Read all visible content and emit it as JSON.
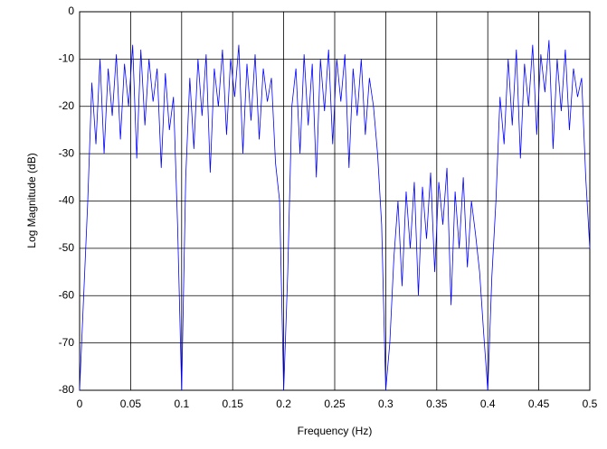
{
  "chart_data": {
    "type": "line",
    "xlabel": "Frequency (Hz)",
    "ylabel": "Log Magnitude (dB)",
    "xlim": [
      0,
      0.5
    ],
    "ylim": [
      -80,
      0
    ],
    "xticks": [
      0,
      0.05,
      0.1,
      0.15,
      0.2,
      0.25,
      0.3,
      0.35,
      0.4,
      0.45,
      0.5
    ],
    "yticks": [
      0,
      -10,
      -20,
      -30,
      -40,
      -50,
      -60,
      -70,
      -80
    ],
    "grid": true,
    "x": [
      0,
      0.004,
      0.008,
      0.012,
      0.016,
      0.02,
      0.024,
      0.028,
      0.032,
      0.036,
      0.04,
      0.044,
      0.048,
      0.052,
      0.056,
      0.06,
      0.064,
      0.068,
      0.072,
      0.076,
      0.08,
      0.084,
      0.088,
      0.092,
      0.096,
      0.1,
      0.104,
      0.108,
      0.112,
      0.116,
      0.12,
      0.124,
      0.128,
      0.132,
      0.136,
      0.14,
      0.144,
      0.148,
      0.152,
      0.156,
      0.16,
      0.164,
      0.168,
      0.172,
      0.176,
      0.18,
      0.184,
      0.188,
      0.192,
      0.196,
      0.2,
      0.204,
      0.208,
      0.212,
      0.216,
      0.22,
      0.224,
      0.228,
      0.232,
      0.236,
      0.24,
      0.244,
      0.248,
      0.252,
      0.256,
      0.26,
      0.264,
      0.268,
      0.272,
      0.276,
      0.28,
      0.284,
      0.288,
      0.292,
      0.296,
      0.3,
      0.304,
      0.308,
      0.312,
      0.316,
      0.32,
      0.324,
      0.328,
      0.332,
      0.336,
      0.34,
      0.344,
      0.348,
      0.352,
      0.356,
      0.36,
      0.364,
      0.368,
      0.372,
      0.376,
      0.38,
      0.384,
      0.388,
      0.392,
      0.396,
      0.4,
      0.404,
      0.408,
      0.412,
      0.416,
      0.42,
      0.424,
      0.428,
      0.432,
      0.436,
      0.44,
      0.444,
      0.448,
      0.452,
      0.456,
      0.46,
      0.464,
      0.468,
      0.472,
      0.476,
      0.48,
      0.484,
      0.488,
      0.492,
      0.496,
      0.5
    ],
    "series": [
      {
        "color": "#0000ff",
        "values": [
          -80,
          -60,
          -40,
          -15,
          -28,
          -10,
          -30,
          -12,
          -22,
          -9,
          -27,
          -11,
          -20,
          -7,
          -31,
          -8,
          -24,
          -10,
          -19,
          -12,
          -33,
          -13,
          -25,
          -18,
          -45,
          -80,
          -35,
          -14,
          -29,
          -10,
          -22,
          -9,
          -34,
          -12,
          -20,
          -8,
          -26,
          -10,
          -18,
          -7,
          -30,
          -11,
          -23,
          -9,
          -27,
          -12,
          -19,
          -14,
          -32,
          -40,
          -80,
          -55,
          -20,
          -12,
          -30,
          -9,
          -24,
          -11,
          -35,
          -10,
          -21,
          -8,
          -28,
          -10,
          -19,
          -9,
          -33,
          -12,
          -22,
          -10,
          -26,
          -14,
          -20,
          -30,
          -45,
          -80,
          -70,
          -52,
          -40,
          -58,
          -38,
          -50,
          -36,
          -60,
          -37,
          -48,
          -34,
          -55,
          -36,
          -45,
          -33,
          -62,
          -38,
          -50,
          -35,
          -54,
          -40,
          -47,
          -55,
          -68,
          -80,
          -56,
          -40,
          -18,
          -28,
          -10,
          -24,
          -8,
          -31,
          -11,
          -20,
          -7,
          -26,
          -9,
          -17,
          -6,
          -29,
          -10,
          -21,
          -8,
          -25,
          -12,
          -18,
          -14,
          -35,
          -50
        ]
      }
    ]
  }
}
